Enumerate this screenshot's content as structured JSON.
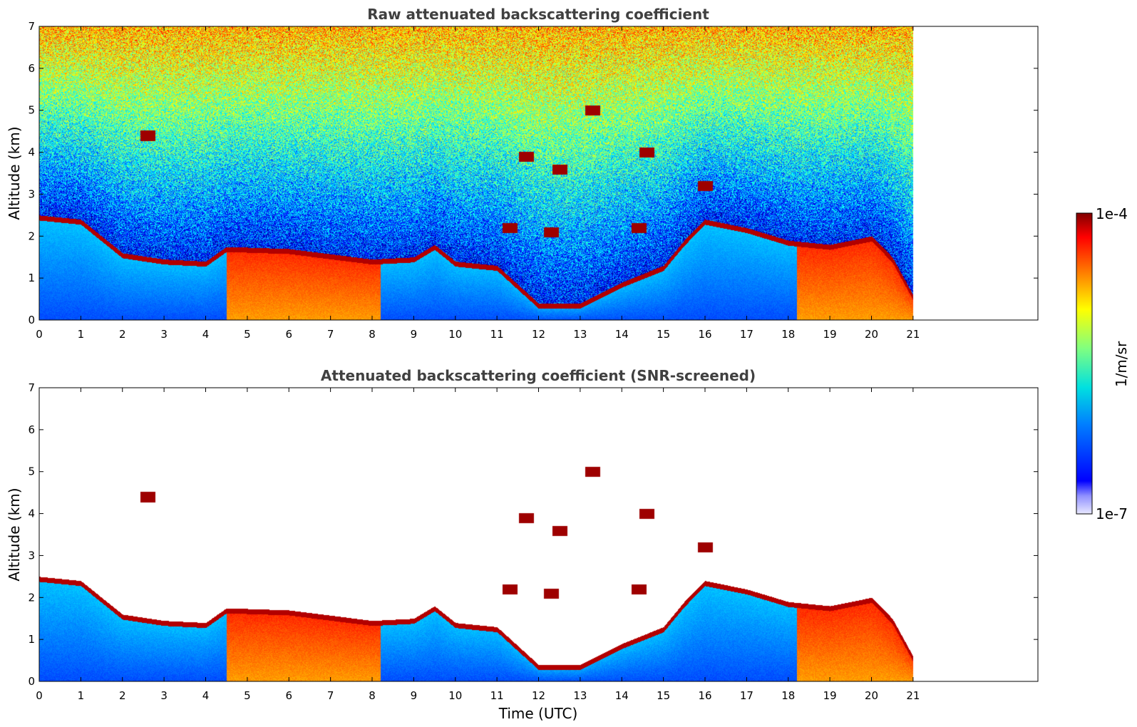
{
  "chart_data": [
    {
      "type": "heatmap",
      "title": "Raw attenuated backscattering coefficient",
      "xlabel": "",
      "ylabel": "Altitude (km)",
      "xlim": [
        0,
        24
      ],
      "ylim": [
        0,
        7
      ],
      "xticks": [
        "0",
        "1",
        "2",
        "3",
        "4",
        "5",
        "6",
        "7",
        "8",
        "9",
        "10",
        "11",
        "12",
        "13",
        "14",
        "15",
        "16",
        "17",
        "18",
        "19",
        "20",
        "21"
      ],
      "yticks": [
        "0",
        "1",
        "2",
        "3",
        "4",
        "5",
        "6",
        "7"
      ],
      "data_extent_hours": [
        0,
        21
      ],
      "screened": false,
      "features": {
        "boundary_layer_top_km": [
          [
            0,
            2.5
          ],
          [
            1,
            2.4
          ],
          [
            2,
            1.6
          ],
          [
            3,
            1.45
          ],
          [
            4,
            1.4
          ],
          [
            4.5,
            1.75
          ],
          [
            6,
            1.7
          ],
          [
            8,
            1.45
          ],
          [
            9,
            1.5
          ],
          [
            9.5,
            1.8
          ],
          [
            10,
            1.4
          ],
          [
            11,
            1.3
          ],
          [
            12,
            0.4
          ],
          [
            13,
            0.4
          ],
          [
            14,
            0.9
          ],
          [
            15,
            1.3
          ],
          [
            15.5,
            1.9
          ],
          [
            16,
            2.4
          ],
          [
            17,
            2.2
          ],
          [
            18,
            1.9
          ],
          [
            19,
            1.8
          ],
          [
            20,
            2.0
          ],
          [
            20.5,
            1.5
          ],
          [
            21,
            0.6
          ]
        ],
        "elevated_aerosol_layers": [
          {
            "t0": 4.5,
            "t1": 8.2,
            "z0": 0,
            "z1": 1.75
          },
          {
            "t0": 18.2,
            "t1": 21,
            "z0": 0,
            "z1": 2.0
          }
        ],
        "high_cloud_patches": [
          {
            "t": 13.3,
            "z": 5.0
          },
          {
            "t": 11.7,
            "z": 3.9
          },
          {
            "t": 12.5,
            "z": 3.6
          },
          {
            "t": 14.6,
            "z": 4.0
          },
          {
            "t": 2.6,
            "z": 4.4
          },
          {
            "t": 16.0,
            "z": 3.2
          },
          {
            "t": 11.3,
            "z": 2.2
          },
          {
            "t": 12.3,
            "z": 2.1
          },
          {
            "t": 14.4,
            "z": 2.2
          }
        ]
      }
    },
    {
      "type": "heatmap",
      "title": "Attenuated backscattering coefficient (SNR-screened)",
      "xlabel": "Time (UTC)",
      "ylabel": "Altitude (km)",
      "xlim": [
        0,
        24
      ],
      "ylim": [
        0,
        7
      ],
      "xticks": [
        "0",
        "1",
        "2",
        "3",
        "4",
        "5",
        "6",
        "7",
        "8",
        "9",
        "10",
        "11",
        "12",
        "13",
        "14",
        "15",
        "16",
        "17",
        "18",
        "19",
        "20",
        "21"
      ],
      "yticks": [
        "0",
        "1",
        "2",
        "3",
        "4",
        "5",
        "6",
        "7"
      ],
      "data_extent_hours": [
        0,
        21
      ],
      "screened": true
    }
  ],
  "colorbar": {
    "label": "1/m/sr",
    "max_label": "1e-4",
    "min_label": "1e-7",
    "scale": "log",
    "range": [
      1e-07,
      0.0001
    ],
    "colormap": "jet"
  }
}
